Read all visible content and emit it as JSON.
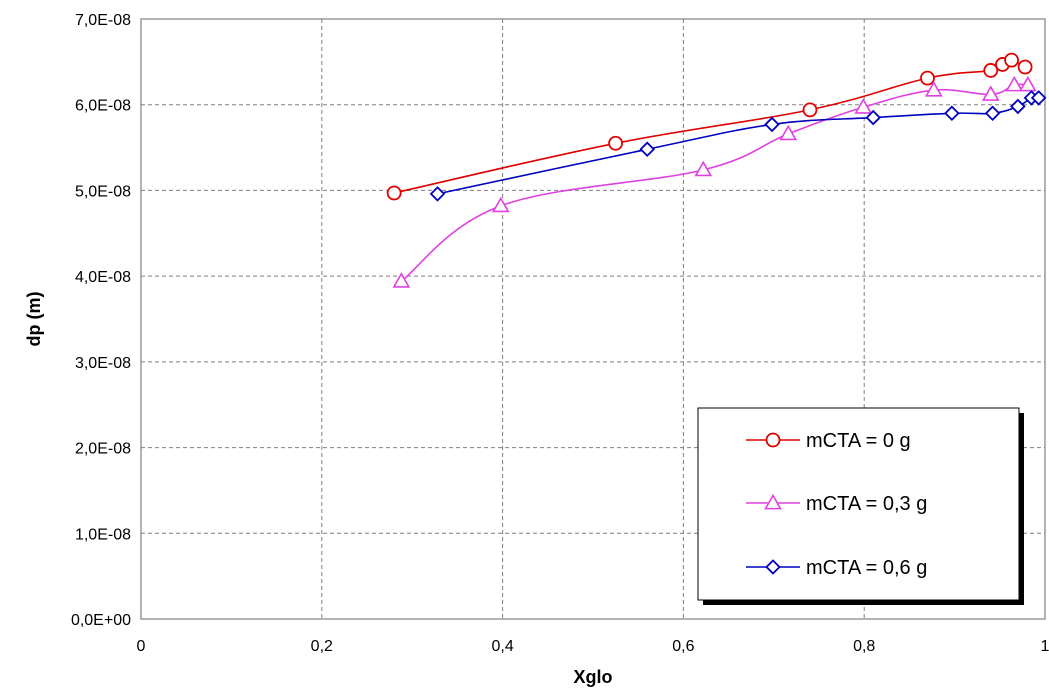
{
  "chart_data": {
    "type": "line",
    "xlabel": "Xglo",
    "ylabel": "dp (m)",
    "xlim": [
      0,
      1
    ],
    "ylim": [
      0,
      7e-08
    ],
    "x_ticks": [
      0,
      0.2,
      0.4,
      0.6,
      0.8,
      1
    ],
    "x_tick_labels": [
      "0",
      "0,2",
      "0,4",
      "0,6",
      "0,8",
      "1"
    ],
    "y_ticks": [
      0,
      1e-08,
      2e-08,
      3e-08,
      4e-08,
      5e-08,
      6e-08,
      7e-08
    ],
    "y_tick_labels": [
      "0,0E+00",
      "1,0E-08",
      "2,0E-08",
      "3,0E-08",
      "4,0E-08",
      "5,0E-08",
      "6,0E-08",
      "7,0E-08"
    ],
    "grid": true,
    "legend_position": "bottom-right",
    "series": [
      {
        "name": "mCTA = 0 g",
        "color": "#e00000",
        "marker": "circle",
        "x": [
          0.28,
          0.525,
          0.74,
          0.87,
          0.94,
          0.953,
          0.963,
          0.978
        ],
        "y": [
          4.97e-08,
          5.55e-08,
          5.94e-08,
          6.31e-08,
          6.4e-08,
          6.47e-08,
          6.52e-08,
          6.44e-08
        ]
      },
      {
        "name": "mCTA = 0,3 g",
        "color": "#e040e0",
        "marker": "triangle",
        "x": [
          0.288,
          0.398,
          0.622,
          0.716,
          0.799,
          0.877,
          0.94,
          0.966,
          0.981
        ],
        "y": [
          3.94e-08,
          4.82e-08,
          5.24e-08,
          5.66e-08,
          5.97e-08,
          6.17e-08,
          6.12e-08,
          6.23e-08,
          6.23e-08
        ]
      },
      {
        "name": "mCTA = 0,6 g",
        "color": "#0000c0",
        "marker": "diamond",
        "x": [
          0.328,
          0.56,
          0.698,
          0.81,
          0.897,
          0.942,
          0.97,
          0.985,
          0.993
        ],
        "y": [
          4.96e-08,
          5.48e-08,
          5.77e-08,
          5.85e-08,
          5.9e-08,
          5.9e-08,
          5.98e-08,
          6.08e-08,
          6.08e-08
        ]
      }
    ]
  }
}
